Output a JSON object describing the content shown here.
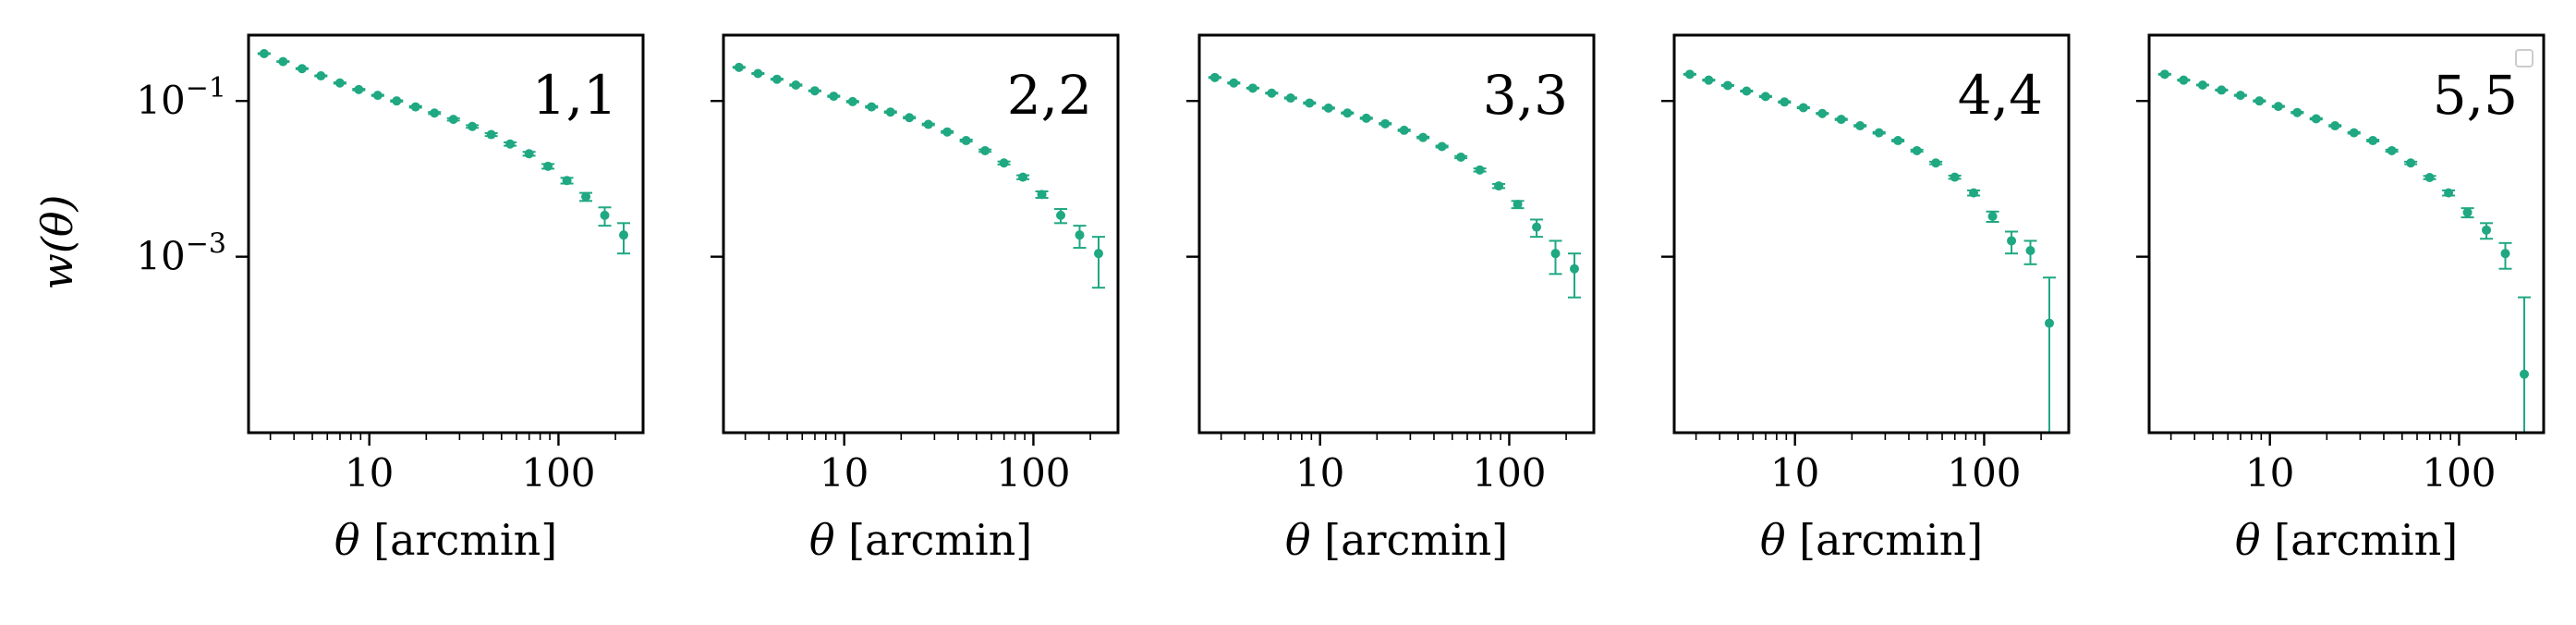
{
  "figure": {
    "ylabel": "w(θ)",
    "xlabel": "θ [arcmin]",
    "xscale": "log",
    "yscale": "log",
    "xlim": [
      2.3,
      280
    ],
    "ylim": [
      5.5e-06,
      0.7
    ],
    "x_tick_labels": [
      "10",
      "100"
    ],
    "y_tick_labels": [
      {
        "base": "10",
        "exp": "−1"
      },
      {
        "base": "10",
        "exp": "−3"
      }
    ],
    "marker_color": "#1fa882",
    "legend": "empty legend box, top-right of last panel"
  },
  "chart_data": [
    {
      "type": "scatter",
      "title": "1,1",
      "x": [
        2.78,
        3.5,
        4.41,
        5.55,
        6.99,
        8.8,
        11.08,
        13.95,
        17.56,
        22.1,
        27.83,
        35.03,
        44.1,
        55.52,
        69.9,
        88.0,
        110.8,
        139.5,
        175.6,
        221.1
      ],
      "y": [
        0.405,
        0.32,
        0.26,
        0.21,
        0.17,
        0.14,
        0.118,
        0.1,
        0.084,
        0.07,
        0.058,
        0.047,
        0.037,
        0.028,
        0.021,
        0.0145,
        0.0095,
        0.0059,
        0.0034,
        0.0019
      ],
      "y_err": [
        0.005,
        0.004,
        0.004,
        0.003,
        0.003,
        0.003,
        0.002,
        0.002,
        0.002,
        0.002,
        0.002,
        0.0018,
        0.0016,
        0.0014,
        0.0012,
        0.001,
        0.0008,
        0.0007,
        0.0009,
        0.0008
      ]
    },
    {
      "type": "scatter",
      "title": "2,2",
      "x": [
        2.78,
        3.5,
        4.41,
        5.55,
        6.99,
        8.8,
        11.08,
        13.95,
        17.56,
        22.1,
        27.83,
        35.03,
        44.1,
        55.52,
        69.9,
        88.0,
        110.8,
        139.5,
        175.6,
        221.1
      ],
      "y": [
        0.27,
        0.225,
        0.19,
        0.16,
        0.135,
        0.115,
        0.098,
        0.084,
        0.072,
        0.061,
        0.05,
        0.04,
        0.031,
        0.023,
        0.016,
        0.0105,
        0.0063,
        0.0034,
        0.0019,
        0.0011
      ],
      "y_err": [
        0.004,
        0.003,
        0.003,
        0.003,
        0.002,
        0.002,
        0.002,
        0.002,
        0.0015,
        0.0014,
        0.0012,
        0.001,
        0.0009,
        0.0008,
        0.0007,
        0.0006,
        0.0006,
        0.0007,
        0.0006,
        0.0007
      ]
    },
    {
      "type": "scatter",
      "title": "3,3",
      "x": [
        2.78,
        3.5,
        4.41,
        5.55,
        6.99,
        8.8,
        11.08,
        13.95,
        17.56,
        22.1,
        27.83,
        35.03,
        44.1,
        55.52,
        69.9,
        88.0,
        110.8,
        139.5,
        175.6,
        221.1
      ],
      "y": [
        0.2,
        0.17,
        0.146,
        0.126,
        0.109,
        0.094,
        0.081,
        0.07,
        0.06,
        0.051,
        0.042,
        0.034,
        0.026,
        0.019,
        0.013,
        0.0081,
        0.0047,
        0.0024,
        0.0011,
        0.0007
      ],
      "y_err": [
        0.003,
        0.003,
        0.002,
        0.002,
        0.002,
        0.002,
        0.0015,
        0.0013,
        0.0012,
        0.001,
        0.0009,
        0.0008,
        0.0007,
        0.0006,
        0.0006,
        0.0005,
        0.0005,
        0.0006,
        0.0005,
        0.0004
      ]
    },
    {
      "type": "scatter",
      "title": "4,4",
      "x": [
        2.78,
        3.5,
        4.41,
        5.55,
        6.99,
        8.8,
        11.08,
        13.95,
        17.56,
        22.1,
        27.83,
        35.03,
        44.1,
        55.52,
        69.9,
        88.0,
        110.8,
        139.5,
        175.6,
        221.1
      ],
      "y": [
        0.22,
        0.185,
        0.158,
        0.134,
        0.114,
        0.097,
        0.082,
        0.069,
        0.058,
        0.048,
        0.039,
        0.031,
        0.023,
        0.016,
        0.0105,
        0.0066,
        0.0033,
        0.0016,
        0.0012,
        0.00014
      ],
      "y_err": [
        0.003,
        0.003,
        0.002,
        0.002,
        0.002,
        0.002,
        0.0015,
        0.0012,
        0.0011,
        0.001,
        0.0009,
        0.0008,
        0.0007,
        0.0006,
        0.0005,
        0.0005,
        0.0005,
        0.0005,
        0.0004,
        0.0004
      ]
    },
    {
      "type": "scatter",
      "title": "5,5",
      "x": [
        2.78,
        3.5,
        4.41,
        5.55,
        6.99,
        8.8,
        11.08,
        13.95,
        17.56,
        22.1,
        27.83,
        35.03,
        44.1,
        55.52,
        69.9,
        88.0,
        110.8,
        139.5,
        175.6,
        221.1
      ],
      "y": [
        0.22,
        0.185,
        0.16,
        0.138,
        0.118,
        0.1,
        0.085,
        0.071,
        0.059,
        0.048,
        0.039,
        0.031,
        0.023,
        0.016,
        0.0104,
        0.0066,
        0.0037,
        0.0022,
        0.0011,
        3.1e-05
      ],
      "y_err": [
        0.003,
        0.003,
        0.002,
        0.002,
        0.002,
        0.002,
        0.0015,
        0.0013,
        0.0012,
        0.001,
        0.0009,
        0.0008,
        0.0007,
        0.0006,
        0.0005,
        0.0005,
        0.0005,
        0.0005,
        0.0004,
        0.00027
      ]
    }
  ]
}
